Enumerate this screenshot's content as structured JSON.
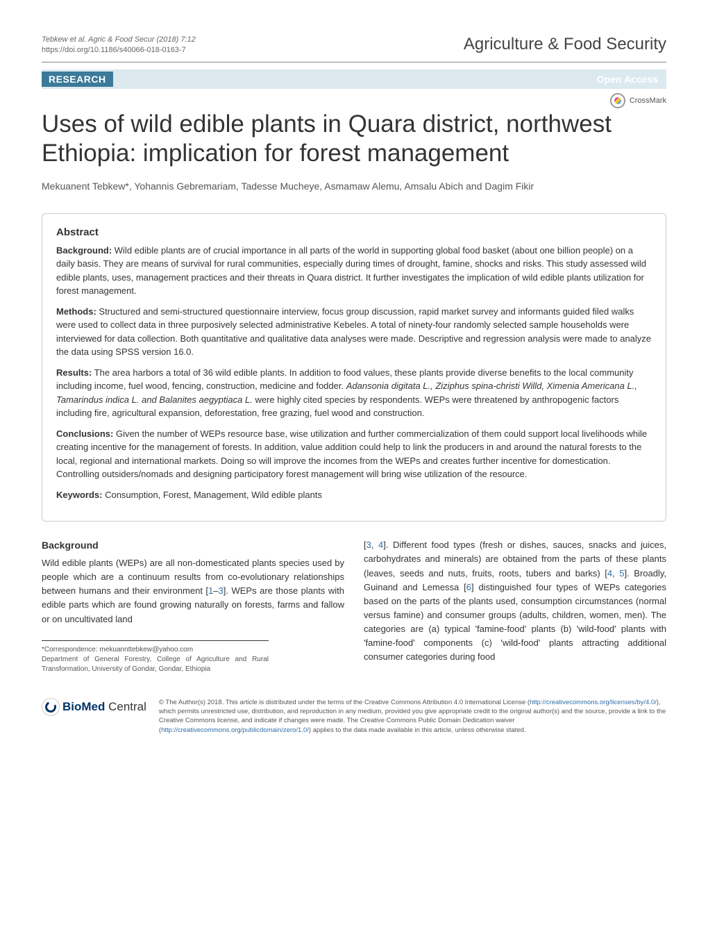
{
  "header": {
    "citation": "Tebkew et al. Agric & Food Secur  (2018) 7:12",
    "doi": "https://doi.org/10.1186/s40066-018-0163-7",
    "journal": "Agriculture & Food Security"
  },
  "badges": {
    "research": "RESEARCH",
    "open_access": "Open Access",
    "crossmark": "CrossMark"
  },
  "article": {
    "title": "Uses of wild edible plants in Quara district, northwest Ethiopia: implication for forest management",
    "authors": "Mekuanent Tebkew*, Yohannis Gebremariam, Tadesse Mucheye, Asmamaw Alemu, Amsalu Abich and Dagim Fikir"
  },
  "abstract": {
    "heading": "Abstract",
    "background_label": "Background:",
    "background_text": "  Wild edible plants are of crucial importance in all parts of the world in supporting global food basket (about one billion people) on a daily basis. They are means of survival for rural communities, especially during times of drought, famine, shocks and risks. This study assessed wild edible plants, uses, management practices and their threats in Quara district. It further investigates the implication of wild edible plants utilization for forest management.",
    "methods_label": "Methods:",
    "methods_text": "  Structured and semi-structured questionnaire interview, focus group discussion, rapid market survey and informants guided filed walks were used to collect data in three purposively selected administrative Kebeles. A total of ninety-four randomly selected sample households were interviewed for data collection. Both quantitative and qualitative data analyses were made. Descriptive and regression analysis were made to analyze the data using SPSS version 16.0.",
    "results_label": "Results:",
    "results_text_a": "  The area harbors a total of 36 wild edible plants. In addition to food values, these plants provide diverse benefits to the local community including income, fuel wood, fencing, construction, medicine and fodder. ",
    "results_italic": "Adansonia digitata L., Ziziphus spina-christi Willd, Ximenia Americana L., Tamarindus indica L. and Balanites aegyptiaca L.",
    "results_text_b": " were highly cited species by respondents. WEPs were threatened by anthropogenic factors including fire, agricultural expansion, deforestation, free grazing, fuel wood and construction.",
    "conclusions_label": "Conclusions:",
    "conclusions_text": "  Given the number of WEPs resource base, wise utilization and further commercialization of them could support local livelihoods while creating incentive for the management of forests. In addition, value addition could help to link the producers in and around the natural forests to the local, regional and international markets. Doing so will improve the incomes from the WEPs and creates further incentive for domestication. Controlling outsiders/nomads and designing participatory forest management will bring wise utilization of the resource.",
    "keywords_label": "Keywords:",
    "keywords_text": "  Consumption, Forest, Management, Wild edible plants"
  },
  "body": {
    "background_heading": "Background",
    "col1_a": "Wild edible plants (WEPs) are all non-domesticated plants species used by people which are a continuum results from co-evolutionary relationships between humans and their environment [",
    "ref1": "1",
    "dash": "–",
    "ref3": "3",
    "col1_b": "]. WEPs are those plants with edible parts which are found growing naturally on forests, farms and fallow or on uncultivated land ",
    "col2_a": "[",
    "ref3b": "3",
    "comma": ", ",
    "ref4": "4",
    "col2_b": "]. Different food types (fresh or dishes, sauces, snacks and juices, carbohydrates and minerals) are obtained from the parts of these plants (leaves, seeds and nuts, fruits, roots, tubers and barks) [",
    "ref4b": "4",
    "ref5": "5",
    "col2_c": "]. Broadly, Guinand and Lemessa [",
    "ref6": "6",
    "col2_d": "] distinguished four types of WEPs categories based on the parts of the plants used, consumption circumstances (normal versus famine) and consumer groups (adults, children, women, men). The categories are (a) typical 'famine-food' plants (b) 'wild-food' plants with 'famine-food' components (c) 'wild-food' plants attracting additional consumer categories during food "
  },
  "correspondence": {
    "label": "*Correspondence:  ",
    "email": "mekuannttebkew@yahoo.com",
    "affiliation": "Department of General Forestry, College of Agriculture and Rural Transformation, University of Gondar, Gondar, Ethiopia"
  },
  "footer": {
    "bmc_bio": "BioMed",
    "bmc_central": " Central",
    "license_a": "© The Author(s) 2018. This article is distributed under the terms of the Creative Commons Attribution 4.0 International License (",
    "license_link1": "http://creativecommons.org/licenses/by/4.0/",
    "license_b": "), which permits unrestricted use, distribution, and reproduction in any medium, provided you give appropriate credit to the original author(s) and the source, provide a link to the Creative Commons license, and indicate if changes were made. The Creative Commons Public Domain Dedication waiver (",
    "license_link2": "http://creativecommons.org/publicdomain/zero/1.0/",
    "license_c": ") applies to the data made available in this article, unless otherwise stated."
  }
}
